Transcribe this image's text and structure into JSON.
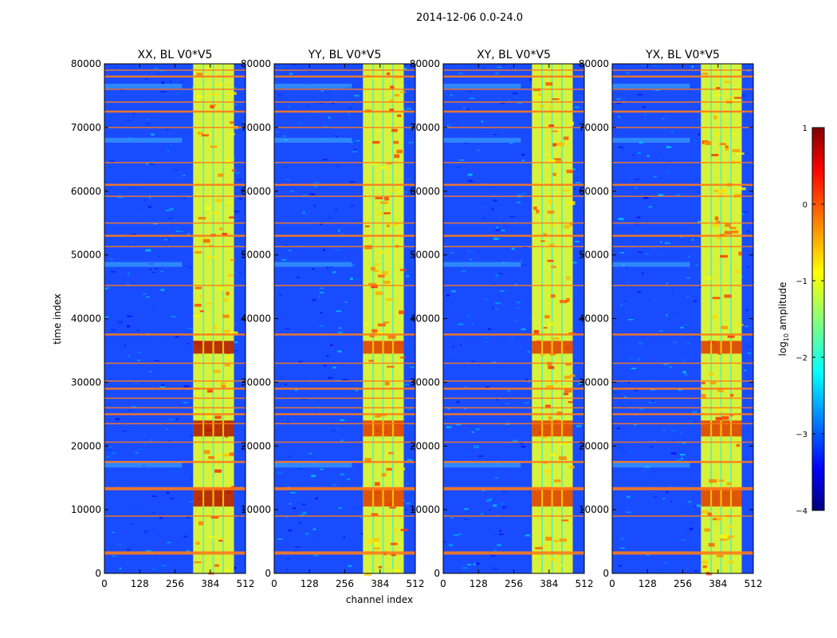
{
  "figure": {
    "suptitle": "2014-12-06 0.0-24.0"
  },
  "chart_data": {
    "type": "heatmap",
    "panels": [
      {
        "title": "XX, BL V0*V5",
        "pol": "XX"
      },
      {
        "title": "YY, BL V0*V5",
        "pol": "YY"
      },
      {
        "title": "XY, BL V0*V5",
        "pol": "XY"
      },
      {
        "title": "YX, BL V0*V5",
        "pol": "YX"
      }
    ],
    "xlabel": "channel index",
    "ylabel": "time index",
    "xlim": [
      0,
      512
    ],
    "ylim": [
      0,
      80000
    ],
    "xticks": [
      0,
      128,
      256,
      384,
      512
    ],
    "yticks": [
      0,
      10000,
      20000,
      30000,
      40000,
      50000,
      60000,
      70000,
      80000
    ],
    "colorbar": {
      "label_main": "log",
      "label_sub": "10",
      "label_rest": " amplitude",
      "range": [
        -4,
        1
      ],
      "ticks": [
        1,
        0,
        -1,
        -2,
        -3,
        -4
      ],
      "tick_labels": [
        "1",
        "0",
        "−1",
        "−2",
        "−3",
        "−4"
      ],
      "colormap": "jet"
    },
    "features": {
      "rfi_channel_band": [
        322,
        470
      ],
      "rfi_channel_gaps": [
        [
          356,
          362
        ],
        [
          392,
          398
        ],
        [
          428,
          434
        ]
      ],
      "rfi_time_rows": [
        3200,
        9000,
        13300,
        17500,
        20600,
        23500,
        25000,
        26000,
        27500,
        29000,
        30200,
        33000,
        37500,
        45200,
        51300,
        53000,
        55000,
        59200,
        61000,
        64500,
        70000,
        72500,
        74000,
        76000,
        78000,
        79000
      ],
      "bright_time_blocks": [
        [
          10500,
          13500
        ],
        [
          21500,
          24000
        ],
        [
          34500,
          36500
        ]
      ]
    }
  },
  "colors": {
    "background": "#ffffff",
    "axis": "#000000"
  }
}
